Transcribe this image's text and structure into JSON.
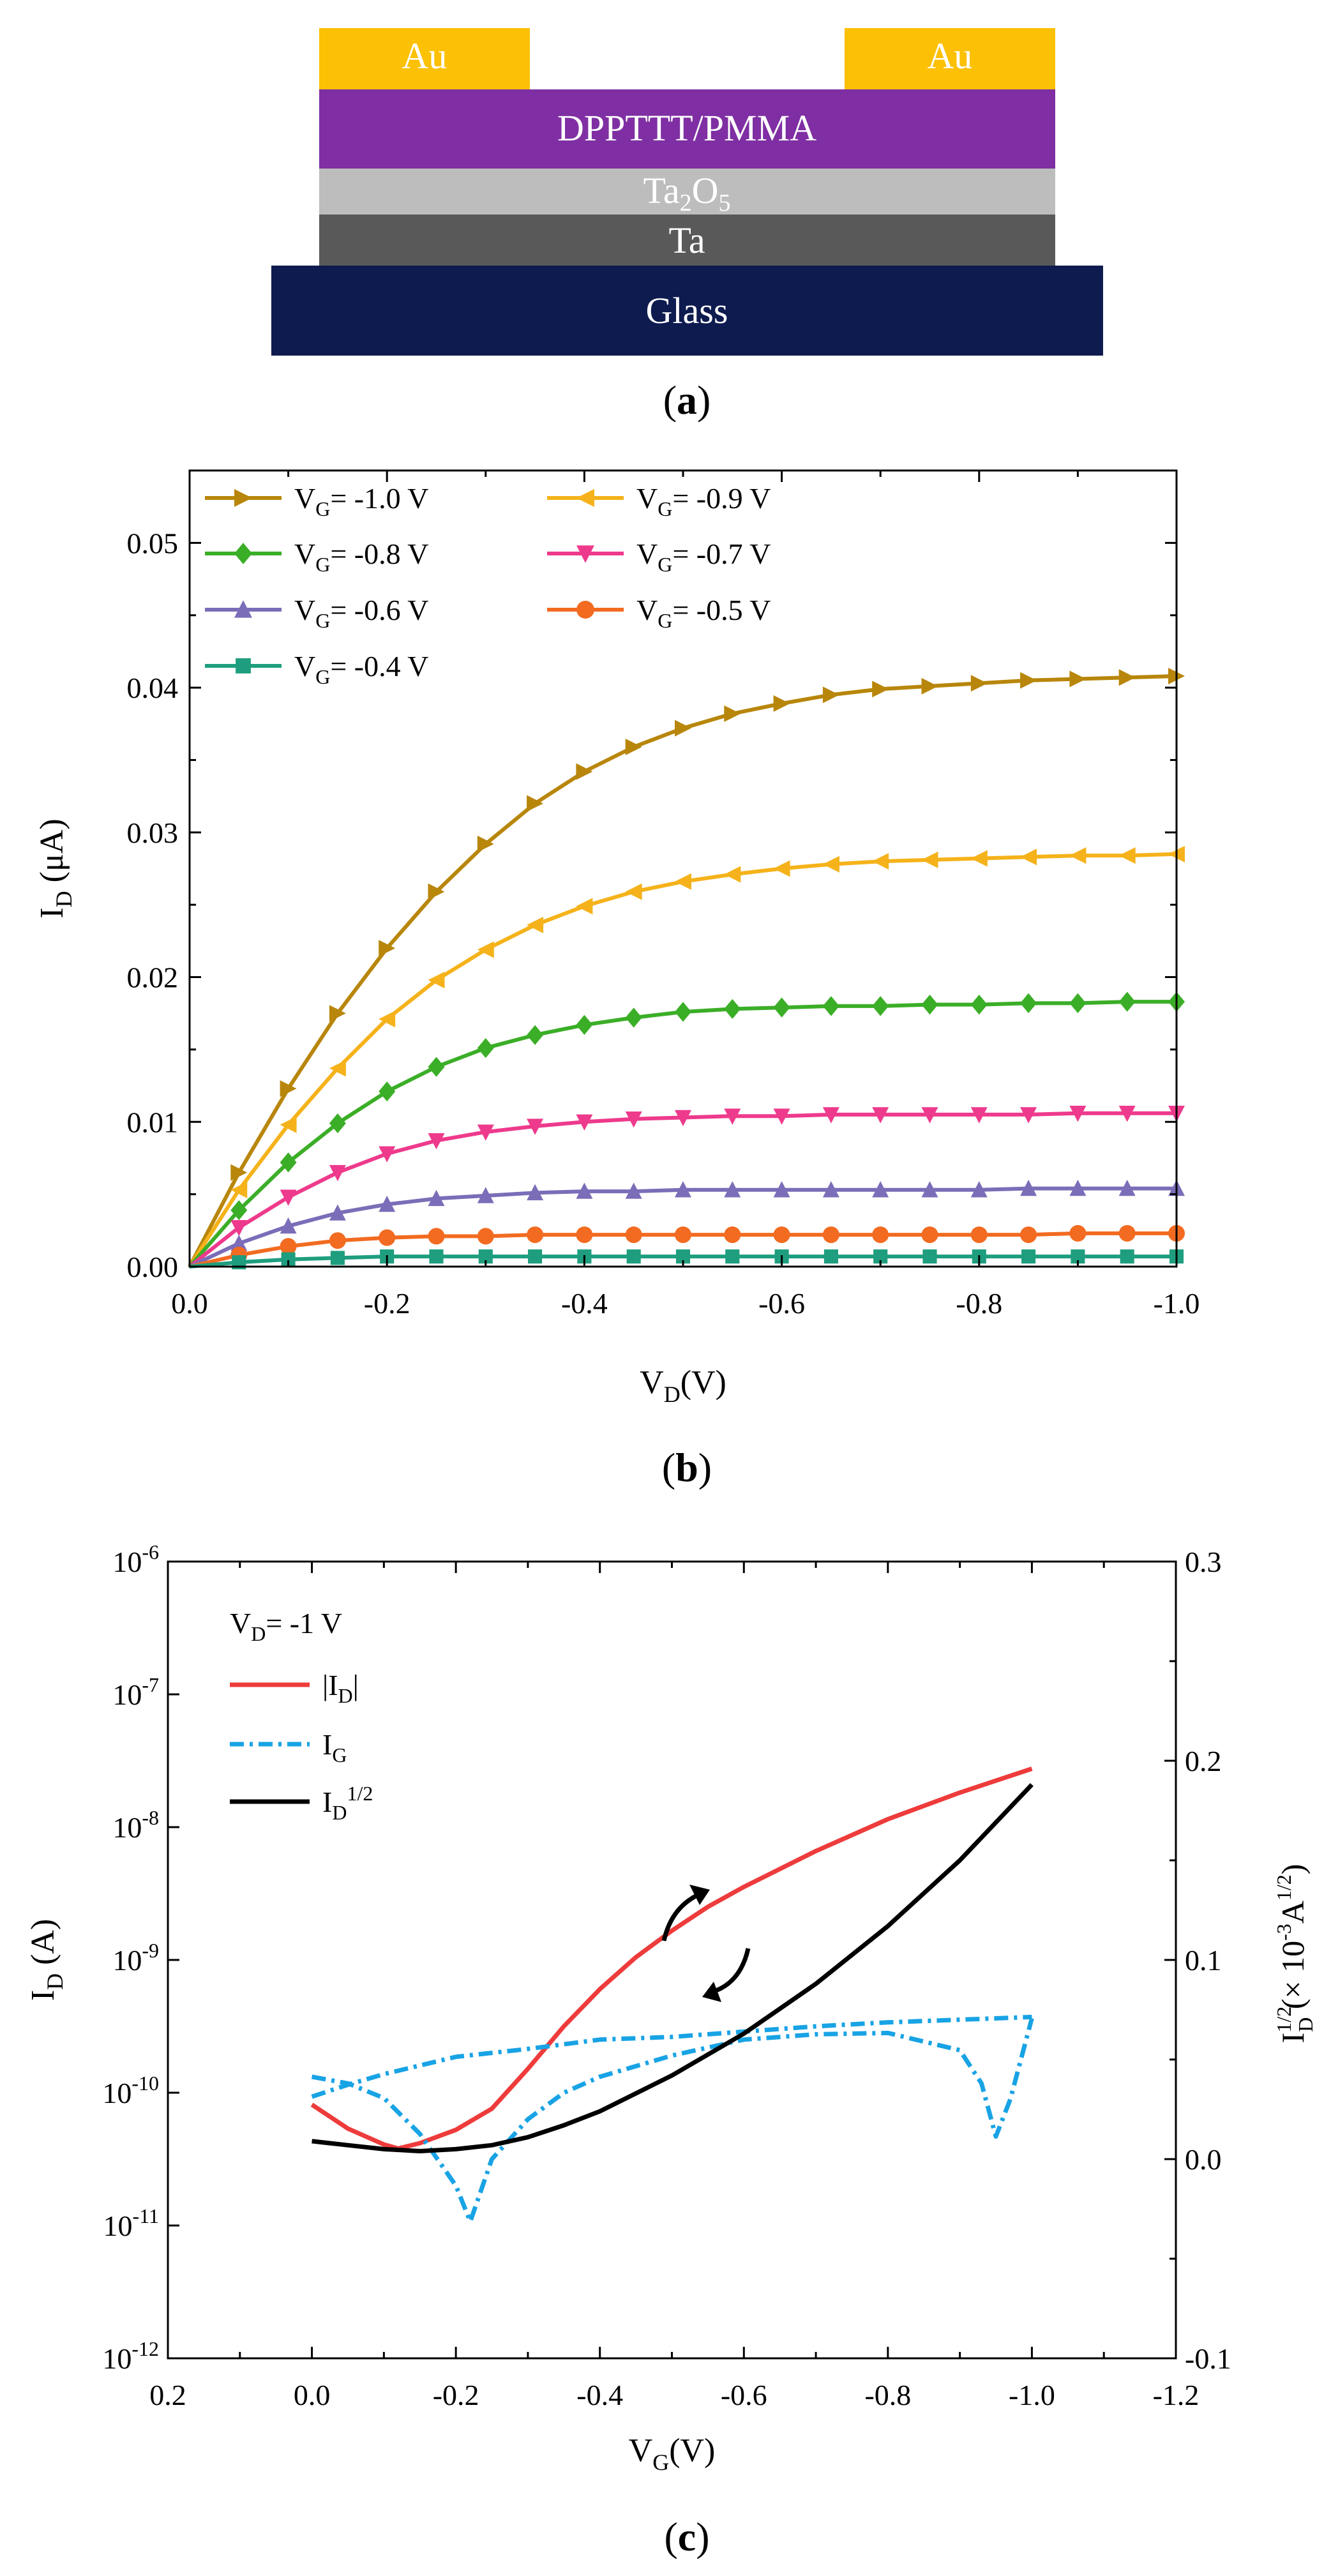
{
  "device": {
    "layers": {
      "au_left": "Au",
      "au_right": "Au",
      "semiconductor": "DPPTTT/PMMA",
      "dielectric": {
        "base": "Ta",
        "sub1": "2",
        "mid": "O",
        "sub2": "5"
      },
      "gate": "Ta",
      "substrate": "Glass"
    },
    "colors": {
      "au": "#FCC004",
      "dpp": "#7F2FA3",
      "ta2o5": "#BDBDBD",
      "ta": "#595959",
      "glass": "#0E1B4F"
    }
  },
  "panel_labels": {
    "a": "a",
    "b": "b",
    "c": "c"
  },
  "chart_data": [
    {
      "id": "b",
      "type": "line",
      "xlabel": {
        "base": "V",
        "sub": "D",
        "tail": "(V)"
      },
      "ylabel": {
        "base": "I",
        "sub": "D",
        "tail": " (μA)"
      },
      "xlim": [
        0,
        -1.0
      ],
      "ylim": [
        0,
        0.055
      ],
      "xticks": [
        0,
        -0.2,
        -0.4,
        -0.6,
        -0.8,
        -1.0
      ],
      "xtick_labels": [
        "0.0",
        "-0.2",
        "-0.4",
        "-0.6",
        "-0.8",
        "-1.0"
      ],
      "yticks": [
        0,
        0.01,
        0.02,
        0.03,
        0.04,
        0.05
      ],
      "ytick_labels": [
        "0.00",
        "0.01",
        "0.02",
        "0.03",
        "0.04",
        "0.05"
      ],
      "x": [
        0,
        -0.05,
        -0.1,
        -0.15,
        -0.2,
        -0.25,
        -0.3,
        -0.35,
        -0.4,
        -0.45,
        -0.5,
        -0.55,
        -0.6,
        -0.65,
        -0.7,
        -0.75,
        -0.8,
        -0.85,
        -0.9,
        -0.95,
        -1.0
      ],
      "series": [
        {
          "name": "-1.0 V",
          "color": "#B8860B",
          "marker": "triangle-right",
          "values": [
            0,
            0.0065,
            0.0123,
            0.0175,
            0.022,
            0.0259,
            0.0292,
            0.032,
            0.0342,
            0.0359,
            0.0372,
            0.0382,
            0.0389,
            0.0395,
            0.0399,
            0.0401,
            0.0403,
            0.0405,
            0.0406,
            0.0407,
            0.0408
          ]
        },
        {
          "name": "-0.9 V",
          "color": "#F5B21A",
          "marker": "triangle-left",
          "values": [
            0,
            0.0053,
            0.0098,
            0.0137,
            0.0171,
            0.0198,
            0.0219,
            0.0236,
            0.0249,
            0.0259,
            0.0266,
            0.0271,
            0.0275,
            0.0278,
            0.028,
            0.0281,
            0.0282,
            0.0283,
            0.0284,
            0.0284,
            0.0285
          ]
        },
        {
          "name": "-0.8 V",
          "color": "#3BAE27",
          "marker": "diamond",
          "values": [
            0,
            0.0039,
            0.0072,
            0.0099,
            0.0121,
            0.0138,
            0.0151,
            0.016,
            0.0167,
            0.0172,
            0.0176,
            0.0178,
            0.0179,
            0.018,
            0.018,
            0.0181,
            0.0181,
            0.0182,
            0.0182,
            0.0183,
            0.0183
          ]
        },
        {
          "name": "-0.7 V",
          "color": "#EE3A8C",
          "marker": "triangle-down",
          "values": [
            0,
            0.0027,
            0.0048,
            0.0065,
            0.0078,
            0.0087,
            0.0093,
            0.0097,
            0.01,
            0.0102,
            0.0103,
            0.0104,
            0.0104,
            0.0105,
            0.0105,
            0.0105,
            0.0105,
            0.0105,
            0.0106,
            0.0106,
            0.0106
          ]
        },
        {
          "name": "-0.6 V",
          "color": "#7B6DB8",
          "marker": "triangle-up",
          "values": [
            0,
            0.0016,
            0.0028,
            0.0037,
            0.0043,
            0.0047,
            0.0049,
            0.0051,
            0.0052,
            0.0052,
            0.0053,
            0.0053,
            0.0053,
            0.0053,
            0.0053,
            0.0053,
            0.0053,
            0.0054,
            0.0054,
            0.0054,
            0.0054
          ]
        },
        {
          "name": "-0.5 V",
          "color": "#F26B21",
          "marker": "circle",
          "values": [
            0,
            0.0008,
            0.0014,
            0.0018,
            0.002,
            0.0021,
            0.0021,
            0.0022,
            0.0022,
            0.0022,
            0.0022,
            0.0022,
            0.0022,
            0.0022,
            0.0022,
            0.0022,
            0.0022,
            0.0022,
            0.0023,
            0.0023,
            0.0023
          ]
        },
        {
          "name": "-0.4 V",
          "color": "#1E9E7E",
          "marker": "square",
          "values": [
            0,
            0.0003,
            0.0005,
            0.0006,
            0.0007,
            0.0007,
            0.0007,
            0.0007,
            0.0007,
            0.0007,
            0.0007,
            0.0007,
            0.0007,
            0.0007,
            0.0007,
            0.0007,
            0.0007,
            0.0007,
            0.0007,
            0.0007,
            0.0007
          ]
        }
      ],
      "legend": {
        "prefix": "V",
        "sub": "G",
        "eq": "= ",
        "position": "top-left"
      }
    },
    {
      "id": "c",
      "type": "line",
      "xlabel": {
        "base": "V",
        "sub": "G",
        "tail": "(V)"
      },
      "ylabel_left": {
        "base": "I",
        "sub": "D",
        "tail": " (A)"
      },
      "ylabel_right": {
        "base": "I",
        "sub": "D",
        "sup": "1/2",
        "tail1": " (× 10",
        "sup2": "-3",
        "tail2": "A",
        "sup3": "1/2",
        "tail3": ")"
      },
      "xlim": [
        0.2,
        -1.2
      ],
      "ylim_left_log": [
        -12,
        -6
      ],
      "ylim_right": [
        -0.1,
        0.3
      ],
      "xticks": [
        0.2,
        0.0,
        -0.2,
        -0.4,
        -0.6,
        -0.8,
        -1.0,
        -1.2
      ],
      "xtick_labels": [
        "0.2",
        "0.0",
        "-0.2",
        "-0.4",
        "-0.6",
        "-0.8",
        "-1.0",
        "-1.2"
      ],
      "yticks_left": [
        -12,
        -11,
        -10,
        -9,
        -8,
        -7,
        -6
      ],
      "ytick_left_base": "10",
      "ytick_left_exp": [
        "-12",
        "-11",
        "-10",
        "-9",
        "-8",
        "-7",
        "-6"
      ],
      "yticks_right": [
        -0.1,
        0.0,
        0.1,
        0.2,
        0.3
      ],
      "ytick_right_labels": [
        "-0.1",
        "0.0",
        "0.1",
        "0.2",
        "0.3"
      ],
      "annotation": {
        "base": "V",
        "sub": "D",
        "tail": "= -1 V"
      },
      "legend": [
        {
          "key": "id",
          "pre": "|I",
          "sub": "D",
          "sup": "",
          "post": "|",
          "color": "#EE3B3B",
          "dash": ""
        },
        {
          "key": "ig",
          "pre": "I",
          "sub": "G",
          "sup": "",
          "post": "",
          "color": "#18A3E5",
          "dash": "22,9,5,9"
        },
        {
          "key": "sqrt",
          "pre": "I",
          "sub": "D",
          "sup": "1/2",
          "post": "",
          "color": "#000000",
          "dash": ""
        }
      ],
      "series": [
        {
          "name": "|ID| forward",
          "axis": "left_log",
          "color": "#EE3B3B",
          "x": [
            0,
            -0.05,
            -0.1,
            -0.12,
            -0.15,
            -0.2,
            -0.25,
            -0.3,
            -0.35,
            -0.4,
            -0.45,
            -0.5,
            -0.55,
            -0.6,
            -0.7,
            -0.8,
            -0.9,
            -1.0
          ],
          "log10": [
            -10.09,
            -10.27,
            -10.39,
            -10.42,
            -10.38,
            -10.28,
            -10.12,
            -9.82,
            -9.5,
            -9.22,
            -8.98,
            -8.78,
            -8.6,
            -8.45,
            -8.18,
            -7.94,
            -7.74,
            -7.56
          ]
        },
        {
          "name": "IG sweep A",
          "axis": "left_log",
          "color": "#18A3E5",
          "dash": true,
          "x": [
            0,
            -0.05,
            -0.1,
            -0.15,
            -0.2,
            -0.22,
            -0.25,
            -0.3,
            -0.35,
            -0.4,
            -0.5,
            -0.6,
            -0.7,
            -0.8,
            -0.9,
            -0.93,
            -0.95,
            -0.97,
            -1.0
          ],
          "log10": [
            -9.88,
            -9.93,
            -10.04,
            -10.31,
            -10.7,
            -10.97,
            -10.5,
            -10.2,
            -10.0,
            -9.88,
            -9.72,
            -9.6,
            -9.56,
            -9.55,
            -9.68,
            -9.93,
            -10.33,
            -10.05,
            -9.44
          ]
        },
        {
          "name": "IG sweep B",
          "axis": "left_log",
          "color": "#18A3E5",
          "dash": true,
          "x": [
            0,
            -0.05,
            -0.1,
            -0.2,
            -0.3,
            -0.4,
            -0.5,
            -0.6,
            -0.7,
            -0.8,
            -0.9,
            -1.0
          ],
          "log10": [
            -10.03,
            -9.94,
            -9.86,
            -9.73,
            -9.67,
            -9.6,
            -9.58,
            -9.54,
            -9.5,
            -9.47,
            -9.45,
            -9.43
          ]
        },
        {
          "name": "ID^1/2",
          "axis": "right",
          "color": "#000000",
          "x": [
            0,
            -0.05,
            -0.1,
            -0.15,
            -0.2,
            -0.25,
            -0.3,
            -0.35,
            -0.4,
            -0.5,
            -0.6,
            -0.7,
            -0.8,
            -0.9,
            -1.0
          ],
          "values": [
            0.009,
            0.007,
            0.005,
            0.004,
            0.005,
            0.007,
            0.011,
            0.017,
            0.024,
            0.042,
            0.063,
            0.088,
            0.117,
            0.15,
            0.188
          ]
        }
      ],
      "arrows": [
        {
          "direction": "up-right"
        },
        {
          "direction": "down-left"
        }
      ]
    }
  ]
}
